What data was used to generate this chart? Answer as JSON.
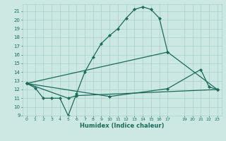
{
  "xlabel": "Humidex (Indice chaleur)",
  "bg_color": "#cce8e3",
  "grid_color": "#a8cfc8",
  "line_color": "#1a6b5a",
  "xlim": [
    -0.5,
    23.5
  ],
  "ylim": [
    9,
    21.8
  ],
  "yticks": [
    9,
    10,
    11,
    12,
    13,
    14,
    15,
    16,
    17,
    18,
    19,
    20,
    21
  ],
  "xticks": [
    0,
    1,
    2,
    3,
    4,
    5,
    6,
    7,
    8,
    9,
    10,
    11,
    12,
    13,
    14,
    15,
    16,
    17,
    19,
    20,
    21,
    22,
    23
  ],
  "curve1_x": [
    0,
    1,
    2,
    3,
    4,
    5,
    6,
    7,
    8,
    9,
    10,
    11,
    12,
    13,
    14,
    15,
    16,
    17
  ],
  "curve1_y": [
    12.7,
    12.2,
    11.0,
    11.0,
    11.0,
    9.0,
    11.5,
    14.0,
    15.7,
    17.3,
    18.2,
    19.0,
    20.2,
    21.2,
    21.5,
    21.2,
    20.2,
    16.3
  ],
  "curve2_x": [
    0,
    5,
    6,
    23
  ],
  "curve2_y": [
    12.7,
    11.0,
    11.3,
    12.0
  ],
  "curve3_x": [
    0,
    10,
    17,
    21,
    22,
    23
  ],
  "curve3_y": [
    12.7,
    11.2,
    12.1,
    14.3,
    12.3,
    12.0
  ],
  "curve4_x": [
    0,
    17,
    23
  ],
  "curve4_y": [
    12.7,
    16.3,
    12.0
  ],
  "marker": "D",
  "markersize": 2.2,
  "linewidth": 0.9
}
